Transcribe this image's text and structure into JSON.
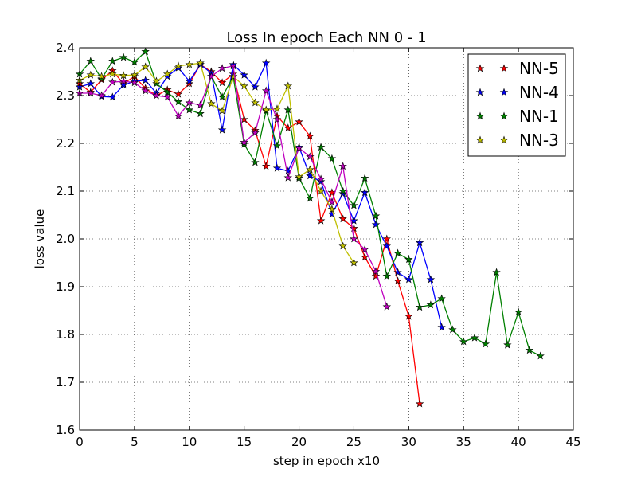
{
  "chart_data": {
    "type": "line",
    "title": "Loss In epoch Each NN 0 - 1",
    "xlabel": "step in epoch x10",
    "ylabel": "loss value",
    "xlim": [
      0,
      45
    ],
    "ylim": [
      1.6,
      2.4
    ],
    "xticks": [
      0,
      5,
      10,
      15,
      20,
      25,
      30,
      35,
      40,
      45
    ],
    "yticks": [
      1.6,
      1.7,
      1.8,
      1.9,
      2.0,
      2.1,
      2.2,
      2.3,
      2.4
    ],
    "xtick_labels": [
      "0",
      "5",
      "10",
      "15",
      "20",
      "25",
      "30",
      "35",
      "40",
      "45"
    ],
    "ytick_labels": [
      "1.6",
      "1.7",
      "1.8",
      "1.9",
      "2.0",
      "2.1",
      "2.2",
      "2.3",
      "2.4"
    ],
    "grid": true,
    "legend_position": "top-right",
    "legend_order": [
      0,
      1,
      2,
      3
    ],
    "series": [
      {
        "name": "NN-5",
        "color": "#ff0000",
        "marker": "star",
        "x": [
          0,
          1,
          2,
          3,
          4,
          5,
          6,
          7,
          8,
          9,
          10,
          11,
          12,
          13,
          14,
          15,
          16,
          17,
          18,
          19,
          20,
          21,
          22,
          23,
          24,
          25,
          26,
          27,
          28,
          29,
          30,
          31
        ],
        "y": [
          2.325,
          2.307,
          2.333,
          2.352,
          2.325,
          2.34,
          2.315,
          2.3,
          2.312,
          2.303,
          2.325,
          2.365,
          2.35,
          2.327,
          2.345,
          2.25,
          2.227,
          2.152,
          2.257,
          2.232,
          2.245,
          2.215,
          2.038,
          2.097,
          2.042,
          2.022,
          1.962,
          1.922,
          2.0,
          1.912,
          1.838,
          1.655
        ]
      },
      {
        "name": "NN-4",
        "color": "#0000ff",
        "marker": "star",
        "x": [
          0,
          1,
          2,
          3,
          4,
          5,
          6,
          7,
          8,
          9,
          10,
          11,
          12,
          13,
          14,
          15,
          16,
          17,
          18,
          19,
          20,
          21,
          22,
          23,
          24,
          25,
          26,
          27,
          28,
          29,
          30,
          31,
          32,
          33
        ],
        "y": [
          2.318,
          2.325,
          2.298,
          2.297,
          2.322,
          2.33,
          2.332,
          2.305,
          2.34,
          2.358,
          2.33,
          2.365,
          2.347,
          2.228,
          2.365,
          2.343,
          2.318,
          2.368,
          2.148,
          2.142,
          2.192,
          2.132,
          2.12,
          2.052,
          2.095,
          2.038,
          2.097,
          2.03,
          1.985,
          1.93,
          1.915,
          1.992,
          1.915,
          1.815
        ]
      },
      {
        "name": "NN-1",
        "color": "#008000",
        "marker": "star",
        "x": [
          0,
          1,
          2,
          3,
          4,
          5,
          6,
          7,
          8,
          9,
          10,
          11,
          12,
          13,
          14,
          15,
          16,
          17,
          18,
          19,
          20,
          21,
          22,
          23,
          24,
          25,
          26,
          27,
          28,
          29,
          30,
          31,
          32,
          33,
          34,
          35,
          36,
          37,
          38,
          39,
          40,
          41,
          42
        ],
        "y": [
          2.345,
          2.372,
          2.335,
          2.372,
          2.38,
          2.37,
          2.392,
          2.325,
          2.307,
          2.287,
          2.27,
          2.262,
          2.34,
          2.297,
          2.34,
          2.198,
          2.16,
          2.268,
          2.195,
          2.27,
          2.127,
          2.085,
          2.192,
          2.168,
          2.1,
          2.07,
          2.127,
          2.048,
          1.922,
          1.97,
          1.957,
          1.857,
          1.862,
          1.875,
          1.81,
          1.785,
          1.793,
          1.78,
          1.93,
          1.778,
          1.847,
          1.767,
          1.755
        ]
      },
      {
        "name": "NN-3",
        "color": "#bfbf00",
        "marker": "star",
        "x": [
          0,
          1,
          2,
          3,
          4,
          5,
          6,
          7,
          8,
          9,
          10,
          11,
          12,
          13,
          14,
          15,
          16,
          17,
          18,
          19,
          20,
          21,
          22,
          23,
          24,
          25
        ],
        "y": [
          2.332,
          2.343,
          2.34,
          2.345,
          2.342,
          2.343,
          2.36,
          2.33,
          2.345,
          2.362,
          2.365,
          2.368,
          2.283,
          2.268,
          2.34,
          2.32,
          2.285,
          2.27,
          2.272,
          2.32,
          2.13,
          2.145,
          2.1,
          2.062,
          1.985,
          1.95
        ]
      },
      {
        "color": "#bf00bf",
        "marker": "star",
        "x": [
          0,
          1,
          2,
          3,
          4,
          5,
          6,
          7,
          8,
          9,
          10,
          11,
          12,
          13,
          14,
          15,
          16,
          17,
          18,
          19,
          20,
          21,
          22,
          23,
          24,
          25,
          26,
          27,
          28
        ],
        "y": [
          2.305,
          2.305,
          2.3,
          2.328,
          2.33,
          2.327,
          2.31,
          2.3,
          2.297,
          2.257,
          2.285,
          2.28,
          2.34,
          2.357,
          2.362,
          2.202,
          2.222,
          2.31,
          2.25,
          2.128,
          2.19,
          2.172,
          2.125,
          2.077,
          2.152,
          2.0,
          1.978,
          1.932,
          1.858
        ]
      }
    ]
  }
}
